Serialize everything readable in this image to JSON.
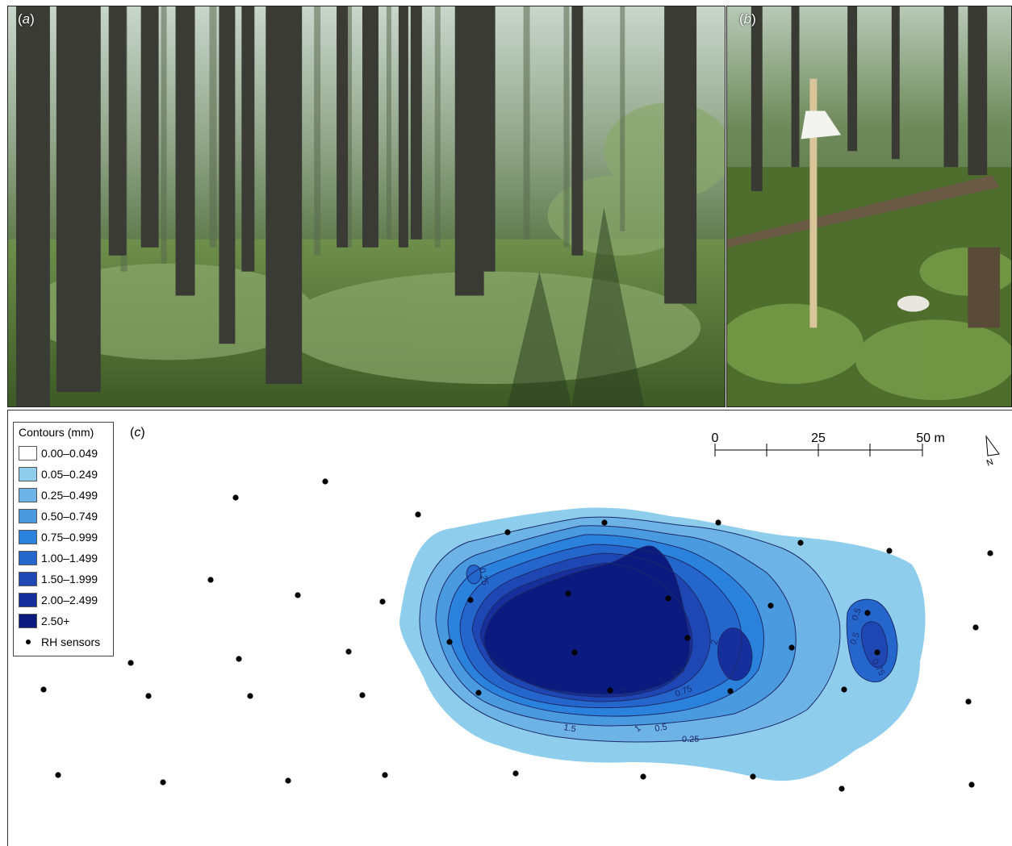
{
  "panels": {
    "a": {
      "paren_open": "(",
      "letter": "a",
      "paren_close": ")"
    },
    "b": {
      "paren_open": "(",
      "letter": "b",
      "paren_close": ")"
    },
    "c": {
      "paren_open": "(",
      "letter": "c",
      "paren_close": ")"
    }
  },
  "legend": {
    "title": "Contours (mm)",
    "items": [
      {
        "label": "0.00–0.049",
        "color": "#ffffff"
      },
      {
        "label": "0.05–0.249",
        "color": "#8ecdec"
      },
      {
        "label": "0.25–0.499",
        "color": "#6eb3e6"
      },
      {
        "label": "0.50–0.749",
        "color": "#4a9ae0"
      },
      {
        "label": "0.75–0.999",
        "color": "#2b82dc"
      },
      {
        "label": "1.00–1.499",
        "color": "#2566cd"
      },
      {
        "label": "1.50–1.999",
        "color": "#1f47b4"
      },
      {
        "label": "2.00–2.499",
        "color": "#172f9d"
      },
      {
        "label": "2.50+",
        "color": "#0a1a7e"
      }
    ],
    "sensor_label": "RH sensors"
  },
  "scale_bar": {
    "ticks": [
      "0",
      "25",
      "50 m"
    ],
    "total_m": 50
  },
  "north_label": "N",
  "contour_labels": [
    "0.25",
    "0.5",
    "0.75",
    "1",
    "1.5",
    "2",
    "0.5",
    "0.5",
    "0.75",
    "0.25",
    "0.5",
    "2"
  ]
}
